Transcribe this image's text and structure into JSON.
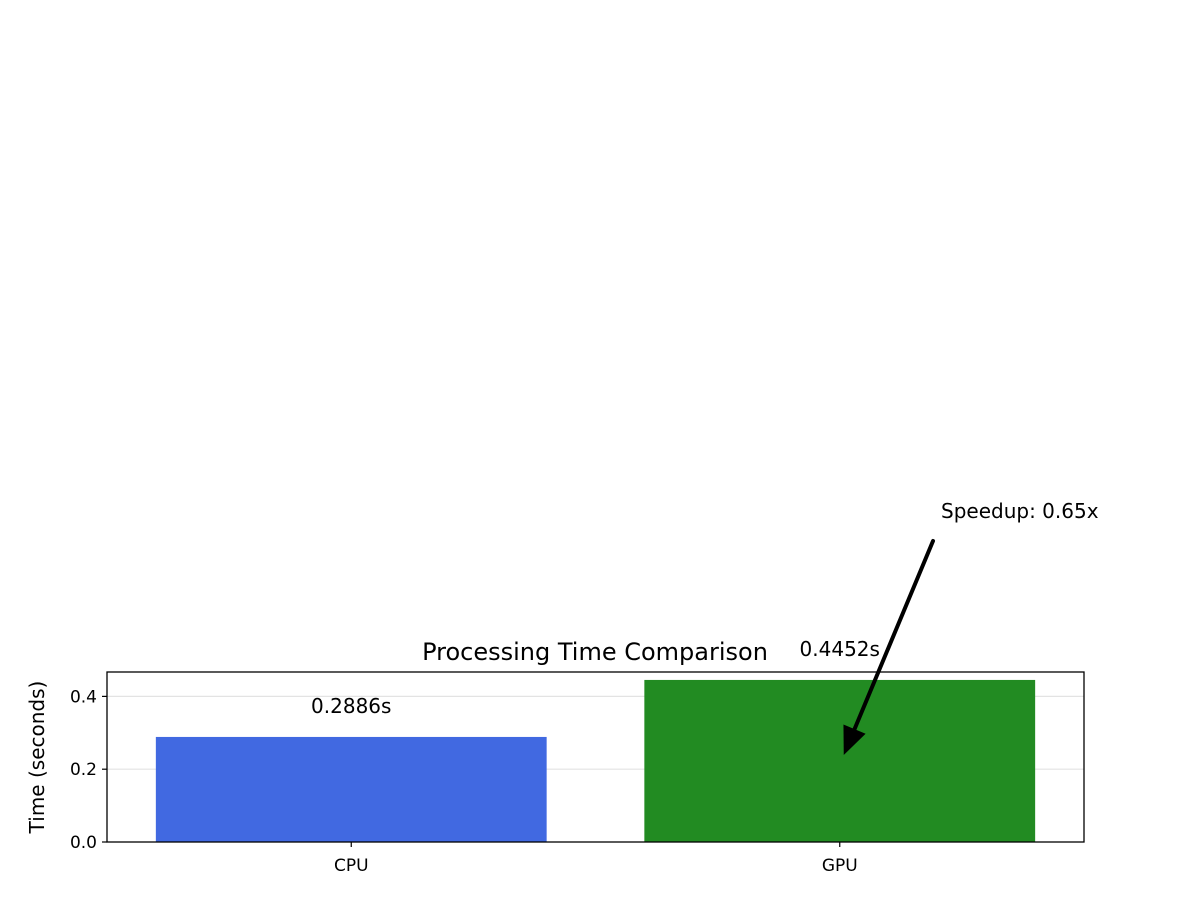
{
  "chart_data": {
    "type": "bar",
    "title": "Processing Time Comparison",
    "xlabel": "",
    "ylabel": "Time (seconds)",
    "categories": [
      "CPU",
      "GPU"
    ],
    "values": [
      0.2886,
      0.4452
    ],
    "bar_labels": [
      "0.2886s",
      "0.4452s"
    ],
    "colors": [
      "#4169e1",
      "#228b22"
    ],
    "ylim": [
      0,
      0.467
    ],
    "yticks": [
      0.0,
      0.2,
      0.4
    ],
    "ytick_labels": [
      "0.0",
      "0.2",
      "0.4"
    ],
    "grid": "y-axis",
    "legend": "none",
    "annotation": {
      "text": "Speedup: 0.65x",
      "points_to": {
        "category": "GPU",
        "value": 0.25
      }
    }
  }
}
